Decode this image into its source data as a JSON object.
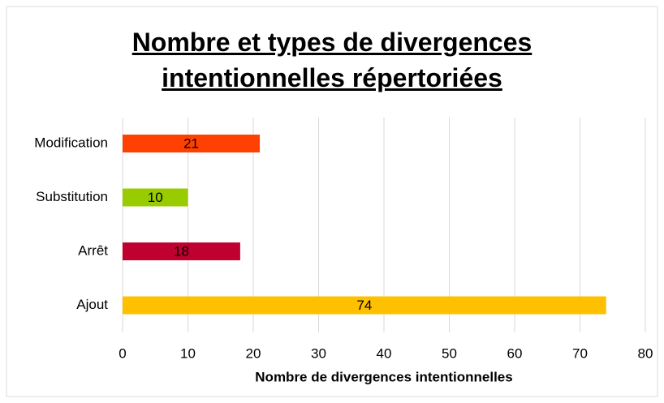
{
  "chart_data": {
    "type": "barh",
    "title": "Nombre et types de divergences intentionnelles répertoriées",
    "categories": [
      "Modification",
      "Substitution",
      "Arrêt",
      "Ajout"
    ],
    "values": [
      21,
      10,
      18,
      74
    ],
    "colors": [
      "#ff4000",
      "#99cc00",
      "#c0002f",
      "#ffc000"
    ],
    "xlabel": "Nombre de divergences intentionnelles",
    "xlim": [
      0,
      80
    ],
    "xticks": [
      0,
      10,
      20,
      30,
      40,
      50,
      60,
      70,
      80
    ],
    "grid": true
  }
}
